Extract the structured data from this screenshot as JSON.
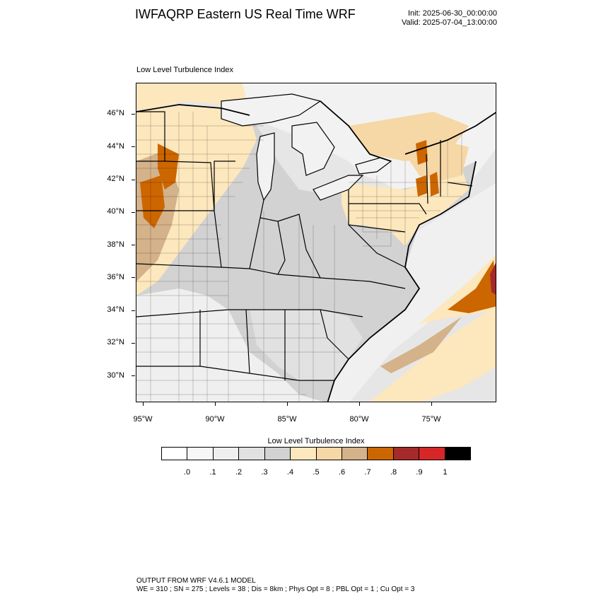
{
  "title": "IWFAQRP Eastern US Real Time WRF",
  "init": "Init: 2025-06-30_00:00:00",
  "valid": "Valid: 2025-07-04_13:00:00",
  "plot_title": "Low Level Turbulence Index",
  "map": {
    "lat_labels": [
      "46°N",
      "44°N",
      "42°N",
      "40°N",
      "38°N",
      "36°N",
      "34°N",
      "32°N",
      "30°N"
    ],
    "lon_labels": [
      "95°W",
      "90°W",
      "85°W",
      "80°W",
      "75°W"
    ],
    "ocean_color": "#e6e6e6",
    "boundary_color": "#000000"
  },
  "colorbar": {
    "title": "Low Level Turbulence Index",
    "colors": [
      "#ffffff",
      "#f7f7f7",
      "#efefef",
      "#e1e1e1",
      "#d2d2d2",
      "#fde7bd",
      "#f6d7a6",
      "#d4b28a",
      "#cc6600",
      "#a52a2a",
      "#d62728",
      "#000000"
    ],
    "labels": [
      ".0",
      ".1",
      ".2",
      ".3",
      ".4",
      ".5",
      ".6",
      ".7",
      ".8",
      ".9",
      "1"
    ]
  },
  "footer": {
    "line1": "OUTPUT FROM WRF V4.6.1 MODEL",
    "line2": "WE = 310 ; SN = 275 ; Levels = 38 ; Dis = 8km ; Phys Opt = 8 ; PBL Opt = 1 ; Cu Opt = 3"
  }
}
